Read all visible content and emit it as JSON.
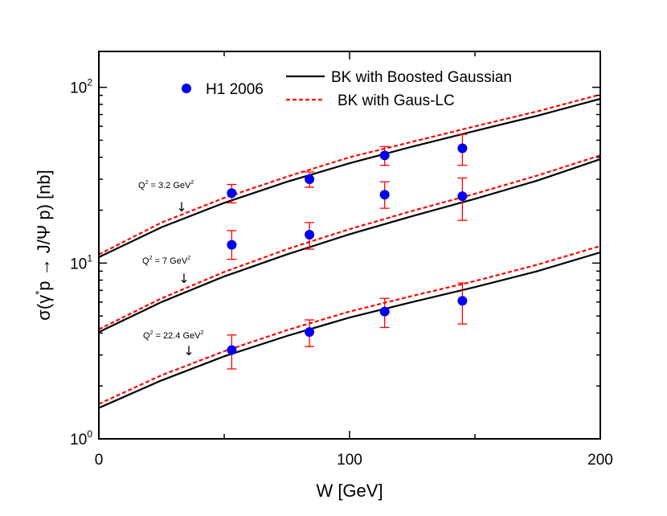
{
  "chart_data": {
    "type": "line",
    "xlabel": "W [GeV]",
    "ylabel_parts": {
      "a": "σ(γ",
      "sup": "*",
      "b": "p → J/Ψ p) [nb]"
    },
    "xlim": [
      0,
      200
    ],
    "ylim": [
      1,
      160
    ],
    "yscale": "log",
    "x_ticks": [
      {
        "value": 0,
        "label": "0"
      },
      {
        "value": 100,
        "label": "100"
      },
      {
        "value": 200,
        "label": "200"
      }
    ],
    "y_ticks": [
      {
        "value": 1,
        "base": "10",
        "exp": "0"
      },
      {
        "value": 10,
        "base": "10",
        "exp": "1"
      },
      {
        "value": 100,
        "base": "10",
        "exp": "2"
      }
    ],
    "legend": {
      "position": "top",
      "entries": [
        {
          "key": "h1",
          "label": "H1 2006",
          "style": "marker"
        },
        {
          "key": "bk_bg",
          "label": "BK with Boosted Gaussian",
          "style": "solid"
        },
        {
          "key": "bk_gl",
          "label": "BK with Gaus-LC",
          "style": "dashed"
        }
      ]
    },
    "colors": {
      "data": "#0000ee",
      "errorbar": "#ff0000",
      "solid": "#000000",
      "dashed": "#ff0000"
    },
    "groups": [
      {
        "key": "q32",
        "annotation": {
          "prefix": "Q",
          "sup": "2",
          "mid": " = 3.2 GeV",
          "sup2": "2",
          "arrow": "↓"
        },
        "h1_points": [
          {
            "x": 53,
            "y": 25.0,
            "lo": 22.0,
            "hi": 28.0
          },
          {
            "x": 84,
            "y": 30.0,
            "lo": 27.0,
            "hi": 33.0
          },
          {
            "x": 114,
            "y": 41.0,
            "lo": 36.0,
            "hi": 46.0
          },
          {
            "x": 145,
            "y": 45.0,
            "lo": 36.0,
            "hi": 54.0
          }
        ],
        "bk_boosted_gaussian": {
          "x": [
            0,
            25,
            50,
            75,
            100,
            125,
            150,
            175,
            200
          ],
          "y": [
            10.8,
            16.0,
            22.0,
            29.0,
            37.0,
            46.0,
            56.5,
            69.0,
            86.0
          ]
        },
        "bk_gaus_lc": {
          "x": [
            0,
            25,
            50,
            75,
            100,
            125,
            150,
            175,
            200
          ],
          "y": [
            11.2,
            17.0,
            23.5,
            31.0,
            40.0,
            49.0,
            60.0,
            73.0,
            91.0
          ]
        }
      },
      {
        "key": "q7",
        "annotation": {
          "prefix": "Q",
          "sup": "2",
          "mid": " = 7 GeV",
          "sup2": "2",
          "arrow": "↓"
        },
        "h1_points": [
          {
            "x": 53,
            "y": 12.7,
            "lo": 10.5,
            "hi": 15.3
          },
          {
            "x": 84,
            "y": 14.5,
            "lo": 12.0,
            "hi": 17.0
          },
          {
            "x": 114,
            "y": 24.5,
            "lo": 20.5,
            "hi": 29.0
          },
          {
            "x": 145,
            "y": 24.0,
            "lo": 17.5,
            "hi": 30.5
          }
        ],
        "bk_boosted_gaussian": {
          "x": [
            0,
            25,
            50,
            75,
            100,
            125,
            150,
            175,
            200
          ],
          "y": [
            4.05,
            6.0,
            8.4,
            11.2,
            14.6,
            18.5,
            23.2,
            29.5,
            39.0
          ]
        },
        "bk_gaus_lc": {
          "x": [
            0,
            25,
            50,
            75,
            100,
            125,
            150,
            175,
            200
          ],
          "y": [
            4.2,
            6.3,
            8.9,
            12.0,
            15.6,
            19.8,
            24.8,
            31.5,
            41.0
          ]
        }
      },
      {
        "key": "q224",
        "annotation": {
          "prefix": "Q",
          "sup": "2",
          "mid": " = 22.4 GeV",
          "sup2": "2",
          "arrow": "↓"
        },
        "h1_points": [
          {
            "x": 53,
            "y": 3.2,
            "lo": 2.5,
            "hi": 3.9
          },
          {
            "x": 84,
            "y": 4.05,
            "lo": 3.35,
            "hi": 4.75
          },
          {
            "x": 114,
            "y": 5.3,
            "lo": 4.3,
            "hi": 6.3
          },
          {
            "x": 145,
            "y": 6.1,
            "lo": 4.5,
            "hi": 7.7
          }
        ],
        "bk_boosted_gaussian": {
          "x": [
            0,
            25,
            50,
            75,
            100,
            125,
            150,
            175,
            200
          ],
          "y": [
            1.5,
            2.15,
            2.95,
            3.85,
            4.9,
            6.0,
            7.3,
            9.0,
            11.5
          ]
        },
        "bk_gaus_lc": {
          "x": [
            0,
            25,
            50,
            75,
            100,
            125,
            150,
            175,
            200
          ],
          "y": [
            1.58,
            2.3,
            3.15,
            4.15,
            5.3,
            6.5,
            7.9,
            9.8,
            12.5
          ]
        }
      }
    ]
  }
}
